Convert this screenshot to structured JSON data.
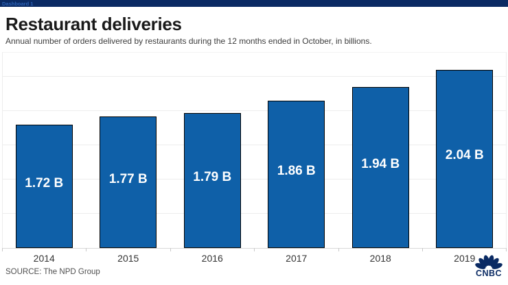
{
  "window": {
    "tab_label": "Dashboard 1"
  },
  "header": {
    "title": "Restaurant deliveries",
    "subtitle": "Annual number of orders delivered by restaurants during the 12 months ended in October, in billions."
  },
  "chart_data": {
    "type": "bar",
    "categories": [
      "2014",
      "2015",
      "2016",
      "2017",
      "2018",
      "2019"
    ],
    "values": [
      1.72,
      1.77,
      1.79,
      1.86,
      1.94,
      2.04
    ],
    "bar_labels": [
      "1.72 B",
      "1.77 B",
      "1.79 B",
      "1.86 B",
      "1.94 B",
      "2.04 B"
    ],
    "title": "Restaurant deliveries",
    "xlabel": "",
    "ylabel": "",
    "ylim": [
      1.0,
      2.15
    ],
    "gridline_step": 0.2,
    "grid": "horizontal",
    "legend": "none",
    "bar_color": "#0f60a8",
    "bar_border_color": "#000000",
    "value_label_color": "#ffffff"
  },
  "footer": {
    "source": "SOURCE: The NPD Group",
    "logo_text": "CNBC"
  },
  "colors": {
    "titlebar_bg": "#0a2a63",
    "titlebar_text": "#2d62b5",
    "title_text": "#1a1a1a",
    "subtitle_text": "#3d3d3d",
    "axis_label": "#333333",
    "source_text": "#4f4f4f",
    "logo_navy": "#0a2a63",
    "gridline": "#ededed",
    "axis_line": "#d8d8d8"
  }
}
